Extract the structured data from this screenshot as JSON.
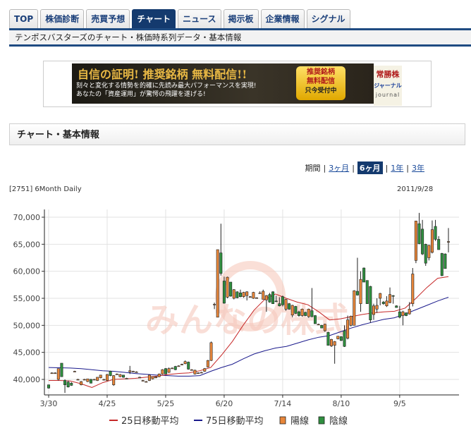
{
  "nav": {
    "tabs": [
      {
        "label": "TOP"
      },
      {
        "label": "株価診断"
      },
      {
        "label": "売買予想"
      },
      {
        "label": "チャート",
        "active": true
      },
      {
        "label": "ニュース"
      },
      {
        "label": "掲示板"
      },
      {
        "label": "企業情報"
      },
      {
        "label": "シグナル"
      }
    ],
    "subtitle": "テンポスバスターズのチャート・株価時系列データ・基本情報"
  },
  "banner": {
    "headline": "自信の証明! 推奨銘柄 無料配信!!",
    "line1": "刻々と変化する情勢を的確に先読み最大パフォーマンスを実現!",
    "line2": "あなたの「資産運用」が驚愕の飛躍を遂げる!",
    "button_line1": "推奨銘柄",
    "button_line2": "無料配信",
    "button_line3": "只今受付中",
    "logo_line1": "常勝株",
    "logo_line2": "ジャーナル",
    "logo_line3": "journal"
  },
  "section_title": "チャート・基本情報",
  "period": {
    "label": "期間",
    "options": [
      {
        "label": "3ヶ月"
      },
      {
        "label": "6ヶ月",
        "active": true
      },
      {
        "label": "1年"
      },
      {
        "label": "3年"
      }
    ]
  },
  "chart_label": "[2751] 6Month Daily",
  "chart_date": "2011/9/28",
  "watermark": "みんなの株式",
  "colors": {
    "up": "#e8863a",
    "down": "#2f8f3f",
    "ma25": "#c62828",
    "ma75": "#1a1a8c"
  },
  "chart_data": {
    "type": "candlestick",
    "ylim": [
      37500,
      71000
    ],
    "yticks": [
      {
        "value": 40000,
        "label": "40,000"
      },
      {
        "value": 45000,
        "label": "45,000"
      },
      {
        "value": 50000,
        "label": "50,000"
      },
      {
        "value": 55000,
        "label": "55,000"
      },
      {
        "value": 60000,
        "label": "60,000"
      },
      {
        "value": 65000,
        "label": "65,000"
      },
      {
        "value": 70000,
        "label": "70,000"
      }
    ],
    "xticks": [
      {
        "index": 0,
        "label": "3/30"
      },
      {
        "index": 18,
        "label": "4/25"
      },
      {
        "index": 36,
        "label": "5/25"
      },
      {
        "index": 54,
        "label": "6/20"
      },
      {
        "index": 72,
        "label": "7/14"
      },
      {
        "index": 90,
        "label": "8/10"
      },
      {
        "index": 108,
        "label": "9/5"
      }
    ],
    "grid": true,
    "legend": [
      {
        "label": "25日移動平均",
        "kind": "ma25"
      },
      {
        "label": "75日移動平均",
        "kind": "ma75"
      },
      {
        "label": "陽線",
        "kind": "up"
      },
      {
        "label": "陰線",
        "kind": "down"
      }
    ],
    "ohlc": [
      [
        39000,
        39000,
        38300,
        38400
      ],
      [
        41200,
        41300,
        41100,
        41200
      ],
      [
        41200,
        41300,
        41100,
        41200
      ],
      [
        40000,
        42000,
        39800,
        42000
      ],
      [
        43000,
        43000,
        40500,
        40500
      ],
      [
        39800,
        40000,
        37500,
        39000
      ],
      [
        39500,
        39800,
        38500,
        38600
      ],
      [
        39300,
        39500,
        38800,
        38900
      ],
      [
        41500,
        41600,
        41400,
        41500
      ],
      [
        40000,
        40100,
        39900,
        40000
      ],
      [
        39000,
        39700,
        38900,
        39600
      ],
      [
        40000,
        40100,
        39900,
        40000
      ],
      [
        39600,
        40100,
        39500,
        40100
      ],
      [
        40000,
        40100,
        39300,
        39300
      ],
      [
        40000,
        40100,
        39900,
        40000
      ],
      [
        39800,
        40400,
        39700,
        40400
      ],
      [
        40300,
        40800,
        40200,
        40800
      ],
      [
        40000,
        40100,
        39800,
        40000
      ],
      [
        39800,
        41000,
        39700,
        40900
      ],
      [
        41500,
        41600,
        40600,
        40700
      ],
      [
        39000,
        40800,
        38800,
        40700
      ],
      [
        41000,
        41100,
        40900,
        41000
      ],
      [
        40500,
        41000,
        40400,
        40900
      ],
      [
        40800,
        40800,
        40300,
        40400
      ],
      [
        40200,
        40300,
        40100,
        40200
      ],
      [
        41400,
        42500,
        41000,
        41600
      ],
      [
        41500,
        41600,
        41400,
        41500
      ],
      [
        41400,
        41500,
        41300,
        41400
      ],
      [
        40400,
        40500,
        40300,
        40400
      ],
      [
        39800,
        39900,
        39700,
        39800
      ],
      [
        39600,
        39700,
        39500,
        39600
      ],
      [
        39800,
        40900,
        39700,
        40800
      ],
      [
        40100,
        40500,
        40000,
        40500
      ],
      [
        40300,
        40600,
        40200,
        40500
      ],
      [
        40500,
        41100,
        40400,
        41000
      ],
      [
        41000,
        41900,
        40900,
        41800
      ],
      [
        42000,
        42100,
        41000,
        41000
      ],
      [
        41300,
        42200,
        41200,
        42000
      ],
      [
        42100,
        42200,
        42000,
        42100
      ],
      [
        42400,
        42500,
        41700,
        41800
      ],
      [
        42500,
        42600,
        42400,
        42500
      ],
      [
        42800,
        42900,
        42700,
        42800
      ],
      [
        42900,
        43500,
        42800,
        43300
      ],
      [
        43200,
        43300,
        41800,
        41900
      ],
      [
        41800,
        41900,
        41700,
        41800
      ],
      [
        41000,
        41800,
        40900,
        41700
      ],
      [
        41200,
        41300,
        41100,
        41200
      ],
      [
        41300,
        41400,
        41200,
        41300
      ],
      [
        41500,
        42100,
        41400,
        42000
      ],
      [
        42300,
        43600,
        42200,
        43500
      ],
      [
        43500,
        47000,
        43400,
        46800
      ],
      [
        53800,
        54200,
        53000,
        53900
      ],
      [
        51500,
        64000,
        51500,
        64000
      ],
      [
        63400,
        68800,
        59200,
        59600
      ],
      [
        58200,
        59000,
        54000,
        54100
      ],
      [
        55200,
        59000,
        55000,
        58900
      ],
      [
        58000,
        58000,
        55300,
        55400
      ],
      [
        55000,
        56700,
        54800,
        56600
      ],
      [
        56200,
        56300,
        55000,
        55100
      ],
      [
        56000,
        56600,
        55200,
        55300
      ],
      [
        55300,
        56200,
        55100,
        56100
      ],
      [
        55500,
        56300,
        54600,
        56200
      ],
      [
        55300,
        55400,
        55200,
        55300
      ],
      [
        55000,
        56200,
        54900,
        56100
      ],
      [
        55100,
        55200,
        55000,
        55100
      ],
      [
        56000,
        56300,
        55900,
        56000
      ],
      [
        54800,
        56600,
        54800,
        56300
      ],
      [
        54700,
        55600,
        52500,
        55500
      ],
      [
        55700,
        56000,
        54200,
        54300
      ],
      [
        56200,
        56300,
        54000,
        54000
      ],
      [
        54500,
        55500,
        54300,
        54400
      ],
      [
        54000,
        55200,
        53500,
        53600
      ],
      [
        55300,
        55500,
        53500,
        53800
      ],
      [
        53000,
        54900,
        52700,
        54800
      ],
      [
        54000,
        54100,
        52900,
        53000
      ],
      [
        51900,
        53800,
        51500,
        53700
      ],
      [
        53500,
        53600,
        52100,
        52200
      ],
      [
        52500,
        52700,
        51600,
        51800
      ],
      [
        51800,
        53100,
        51600,
        53000
      ],
      [
        52400,
        52500,
        51700,
        51800
      ],
      [
        51600,
        53100,
        51400,
        53000
      ],
      [
        52700,
        56900,
        51500,
        51600
      ],
      [
        51800,
        51900,
        50300,
        50300
      ],
      [
        50200,
        50300,
        50100,
        50200
      ],
      [
        50000,
        50100,
        49500,
        49500
      ],
      [
        49000,
        50300,
        48800,
        50200
      ],
      [
        48700,
        48800,
        46300,
        46300
      ],
      [
        46200,
        47500,
        46000,
        47400
      ],
      [
        46300,
        47100,
        42900,
        47000
      ],
      [
        47500,
        48000,
        47400,
        48000
      ],
      [
        47900,
        48000,
        47100,
        47200
      ],
      [
        49000,
        50000,
        46000,
        46100
      ],
      [
        47600,
        51800,
        47400,
        51000
      ],
      [
        50000,
        51800,
        49800,
        51700
      ],
      [
        50000,
        56500,
        50000,
        56400
      ],
      [
        56300,
        62500,
        55500,
        55600
      ],
      [
        54000,
        60000,
        52500,
        58500
      ],
      [
        60600,
        60700,
        58000,
        58000
      ],
      [
        58300,
        58300,
        54000,
        54000
      ],
      [
        57200,
        57300,
        50500,
        51000
      ],
      [
        52000,
        54000,
        51000,
        53600
      ],
      [
        53000,
        55000,
        52300,
        53700
      ],
      [
        55000,
        56000,
        53700,
        55900
      ],
      [
        54300,
        54500,
        53800,
        54000
      ],
      [
        53600,
        55400,
        53400,
        54500
      ],
      [
        54200,
        57000,
        54100,
        55700
      ],
      [
        55500,
        55600,
        54000,
        55400
      ],
      [
        53600,
        53700,
        53300,
        53300
      ],
      [
        52500,
        53600,
        51300,
        51500
      ],
      [
        51800,
        52700,
        50000,
        52500
      ],
      [
        52300,
        52400,
        51700,
        51800
      ],
      [
        52100,
        54300,
        52000,
        53000
      ],
      [
        54000,
        60600,
        53500,
        59500
      ],
      [
        62000,
        69300,
        61500,
        69300
      ],
      [
        68800,
        70800,
        65000,
        65100
      ],
      [
        67800,
        69500,
        63000,
        63200
      ],
      [
        65000,
        65100,
        61000,
        61500
      ],
      [
        62500,
        64900,
        62000,
        64800
      ],
      [
        63500,
        69400,
        63300,
        67700
      ],
      [
        68300,
        69500,
        65600,
        65900
      ],
      [
        65900,
        66500,
        64000,
        64000
      ],
      [
        63300,
        63400,
        59100,
        59200
      ],
      [
        63200,
        63300,
        60500,
        60500
      ],
      [
        65400,
        68000,
        63500,
        65500
      ]
    ],
    "ma25": [
      39800,
      39800,
      39700,
      39200,
      38500,
      39400,
      40000,
      40100,
      40200,
      40400,
      40600,
      40900,
      41100,
      41200,
      41600,
      42200,
      44500,
      47000,
      50000,
      52800,
      54800,
      55800,
      55000,
      54300,
      53800,
      52500,
      51000,
      51200,
      51600,
      52000,
      52300,
      52500,
      52600,
      53200,
      55000,
      57000,
      58700,
      59000
    ],
    "ma75": [
      42200,
      42150,
      42100,
      42000,
      41800,
      41600,
      41500,
      41300,
      41100,
      40950,
      40800,
      40700,
      40600,
      40600,
      40700,
      41500,
      42200,
      42800,
      43800,
      44700,
      45300,
      45800,
      46100,
      46700,
      47300,
      47800,
      48100,
      48800,
      49500,
      50100,
      50600,
      51100,
      51400,
      52100,
      52900,
      53700,
      54500,
      55200
    ]
  }
}
